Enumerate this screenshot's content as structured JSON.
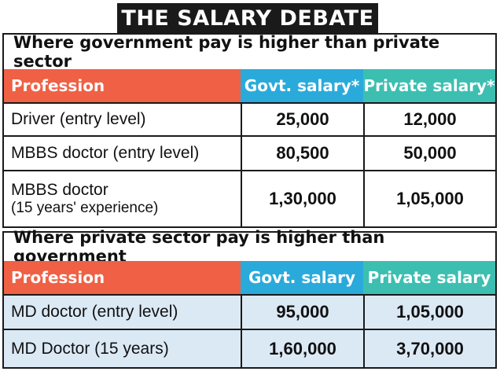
{
  "title": "THE SALARY DEBATE",
  "section1": {
    "heading": "Where government pay is higher than private sector",
    "columns": [
      "Profession",
      "Govt. salary*",
      "Private salary*"
    ],
    "rows": [
      {
        "profession": "Driver (entry level)",
        "govt": "25,000",
        "private": "12,000"
      },
      {
        "profession": "MBBS doctor (entry level)",
        "govt": "80,500",
        "private": "50,000"
      },
      {
        "profession": "MBBS doctor",
        "profession_sub": "(15 years' experience)",
        "govt": "1,30,000",
        "private": "1,05,000"
      }
    ]
  },
  "section2": {
    "heading": "Where private sector pay is higher than government",
    "columns": [
      "Profession",
      "Govt. salary",
      "Private salary"
    ],
    "rows": [
      {
        "profession": "MD doctor (entry level)",
        "govt": "95,000",
        "private": "1,05,000"
      },
      {
        "profession": "MD Doctor (15 years)",
        "govt": "1,60,000",
        "private": "3,70,000"
      }
    ]
  },
  "colors": {
    "profession_header": "#ef6045",
    "govt_header": "#2aaadb",
    "private_header": "#3cbfb1",
    "title_bar": "#1a1a1a",
    "row_highlight": "#dbe9f5"
  }
}
